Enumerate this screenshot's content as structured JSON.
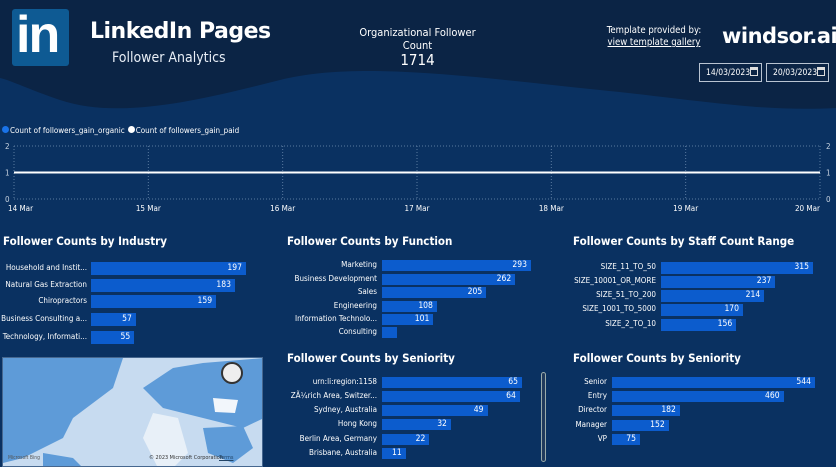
{
  "header": {
    "title": "LinkedIn Pages",
    "subtitle": "Follower Analytics",
    "logo_text": "in",
    "kpi": {
      "label": "Organizational Follower Count",
      "value": "1714"
    },
    "template_label": "Template provided by:",
    "template_link": "view template gallery",
    "brand": "windsor.ai",
    "date_start": "14/03/2023",
    "date_end": "20/03/2023"
  },
  "colors": {
    "background": "#0a3161",
    "header": "#0b2445",
    "bar": "#0c5ccd",
    "organic": "#1a73e8",
    "paid": "#ffffff"
  },
  "chart_data": [
    {
      "type": "line",
      "x": [
        "14 Mar",
        "15 Mar",
        "16 Mar",
        "17 Mar",
        "18 Mar",
        "19 Mar",
        "20 Mar"
      ],
      "ylim": [
        0,
        2
      ],
      "yticks": [
        "0",
        "1",
        "2"
      ],
      "grid": true,
      "legend": "top-left",
      "series": [
        {
          "name": "Count of followers_gain_organic",
          "values": [
            1,
            1,
            1,
            1,
            1,
            1,
            1
          ]
        },
        {
          "name": "Count of followers_gain_paid",
          "values": [
            1,
            1,
            1,
            1,
            1,
            1,
            1
          ]
        }
      ]
    },
    {
      "type": "bar",
      "title": "Follower Counts by Industry",
      "categories": [
        "Household and Instit...",
        "Natural Gas Extraction",
        "Chiropractors",
        "Business Consulting a...",
        "Technology, Informati..."
      ],
      "values": [
        197,
        183,
        159,
        57,
        55
      ]
    },
    {
      "type": "bar",
      "title": "Follower Counts by Function",
      "categories": [
        "Marketing",
        "Business Development",
        "Sales",
        "Engineering",
        "Information Technolo...",
        "Consulting"
      ],
      "values": [
        293,
        262,
        205,
        108,
        101,
        null
      ]
    },
    {
      "type": "bar",
      "title": "Follower Counts by Staff Count Range",
      "categories": [
        "SIZE_11_TO_50",
        "SIZE_10001_OR_MORE",
        "SIZE_51_TO_200",
        "SIZE_1001_TO_5000",
        "SIZE_2_TO_10"
      ],
      "values": [
        315,
        237,
        214,
        170,
        156
      ]
    },
    {
      "type": "bar",
      "title": "Follower Counts by Seniority",
      "categories": [
        "urn:li:region:1158",
        "ZÃ¼rich Area, Switzer...",
        "Sydney, Australia",
        "Hong Kong",
        "Berlin Area, Germany",
        "Brisbane, Australia"
      ],
      "values": [
        65,
        64,
        49,
        32,
        22,
        11
      ]
    },
    {
      "type": "bar",
      "title": "Follower Counts by Seniority",
      "categories": [
        "Senior",
        "Entry",
        "Director",
        "Manager",
        "VP"
      ],
      "values": [
        544,
        460,
        182,
        152,
        75
      ]
    }
  ],
  "map": {
    "attribution_left": "Microsoft Bing",
    "attribution_right": "© 2023 Microsoft Corporation",
    "terms": "Terms"
  }
}
